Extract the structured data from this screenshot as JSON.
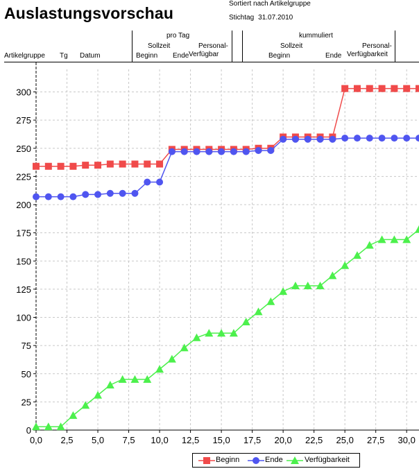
{
  "report": {
    "title": "Auslastungsvorschau",
    "sorted_by": "Sortiert nach Artikelgruppe",
    "stichtag_label": "Stichtag",
    "stichtag_date": "31.07.2010"
  },
  "table_header": {
    "artikelgruppe": "Artikelgruppe",
    "tg": "Tg",
    "datum": "Datum",
    "pro_tag": "pro Tag",
    "pro_tag_sollzeit": "Sollzeit",
    "pro_tag_beginn": "Beginn",
    "pro_tag_ende": "Ende",
    "pro_tag_personal_1": "Personal-",
    "pro_tag_personal_2": "Verfügbar",
    "kummuliert": "kummuliert",
    "kumm_sollzeit": "Sollzeit",
    "kumm_beginn": "Beginn",
    "kumm_ende": "Ende",
    "kumm_personal_1": "Personal-",
    "kumm_personal_2": "Verfügbarkeit"
  },
  "colors": {
    "beginn": "#f04a4a",
    "ende": "#4f55f0",
    "verfuegbarkeit": "#4cf04c",
    "grid": "#c8c8c8"
  },
  "chart_data": {
    "type": "line",
    "title": "",
    "xlabel": "",
    "ylabel": "",
    "xlim": [
      0,
      31
    ],
    "ylim": [
      0,
      320
    ],
    "x_ticks": [
      0,
      2.5,
      5,
      7.5,
      10,
      12.5,
      15,
      17.5,
      20,
      22.5,
      25,
      27.5,
      30
    ],
    "x_tick_labels": [
      "0,0",
      "2,5",
      "5,0",
      "7,5",
      "10,0",
      "12,5",
      "15,0",
      "17,5",
      "20,0",
      "22,5",
      "25,0",
      "27,5",
      "30,0"
    ],
    "y_ticks": [
      0,
      25,
      50,
      75,
      100,
      125,
      150,
      175,
      200,
      225,
      250,
      275,
      300
    ],
    "y_tick_labels": [
      "0",
      "25",
      "50",
      "75",
      "100",
      "125",
      "150",
      "175",
      "200",
      "225",
      "250",
      "275",
      "300"
    ],
    "grid": true,
    "legend_position": "bottom",
    "x": [
      0,
      1,
      2,
      3,
      4,
      5,
      6,
      7,
      8,
      9,
      10,
      11,
      12,
      13,
      14,
      15,
      16,
      17,
      18,
      19,
      20,
      21,
      22,
      23,
      24,
      25,
      26,
      27,
      28,
      29,
      30,
      31
    ],
    "series": [
      {
        "name": "Beginn",
        "marker": "square",
        "values": [
          234,
          234,
          234,
          234,
          235,
          235,
          236,
          236,
          236,
          236,
          236,
          249,
          249,
          249,
          249,
          249,
          249,
          249,
          250,
          250,
          260,
          260,
          260,
          260,
          260,
          303,
          303,
          303,
          303,
          303,
          303,
          303
        ]
      },
      {
        "name": "Ende",
        "marker": "circle",
        "values": [
          207,
          207,
          207,
          207,
          209,
          209,
          210,
          210,
          210,
          220,
          220,
          247,
          247,
          247,
          247,
          247,
          247,
          247,
          248,
          248,
          258,
          258,
          258,
          258,
          258,
          259,
          259,
          259,
          259,
          259,
          259,
          259
        ]
      },
      {
        "name": "Verfügbarkeit",
        "marker": "triangle",
        "values": [
          3,
          3,
          3,
          13,
          22,
          31,
          40,
          45,
          45,
          45,
          54,
          63,
          73,
          82,
          86,
          86,
          86,
          96,
          105,
          114,
          123,
          128,
          128,
          128,
          137,
          146,
          155,
          164,
          169,
          169,
          169,
          178
        ]
      }
    ]
  }
}
